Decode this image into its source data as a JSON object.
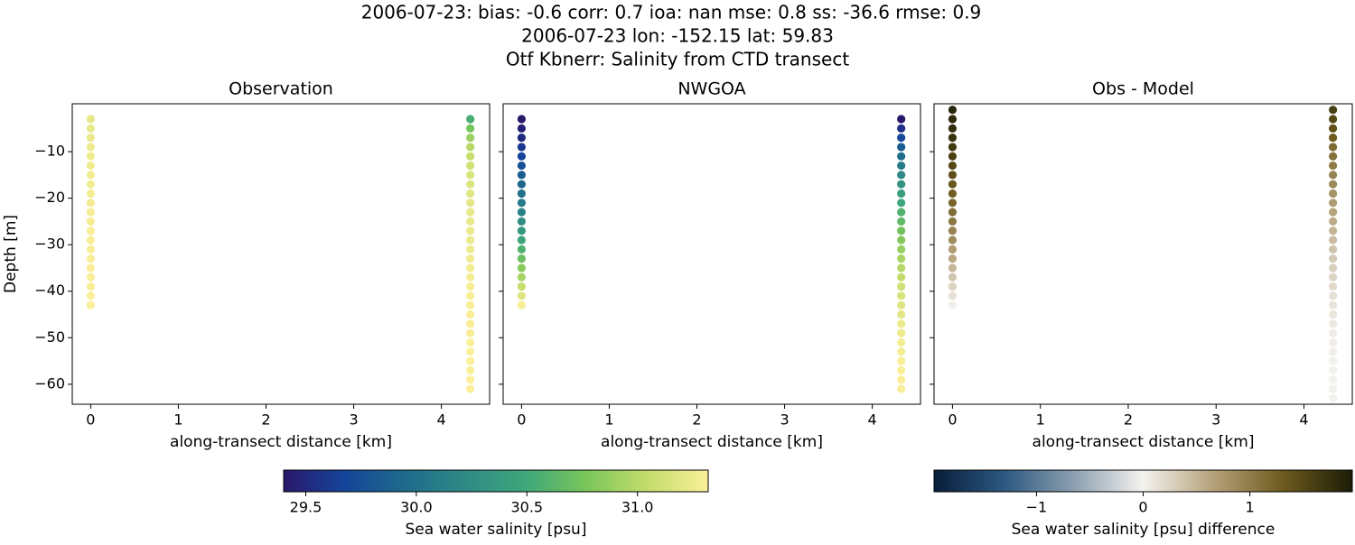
{
  "figure": {
    "title_lines": [
      "2006-07-23: bias: -0.6  corr: 0.7  ioa: nan  mse: 0.8  ss: -36.6  rmse: 0.9",
      "2006-07-23 lon: -152.15 lat: 59.83",
      "Otf Kbnerr: Salinity from CTD transect"
    ]
  },
  "colorbars": [
    {
      "label": "Sea water salinity [psu]",
      "clim": [
        29.4,
        31.32
      ],
      "ticks": [
        29.5,
        {
          "value": 30.0,
          "label": "30.0"
        },
        30.5,
        {
          "value": 31.0,
          "label": "31.0"
        }
      ],
      "colormap": [
        "#29186b",
        "#15449a",
        "#1e6b8b",
        "#2f8a86",
        "#3ea77a",
        "#7bc65a",
        "#c4dc6c",
        "#fbef99"
      ]
    },
    {
      "label": "Sea water salinity [psu] difference",
      "clim": [
        -1.96,
        1.96
      ],
      "ticks": [
        {
          "value": -1,
          "label": "−1"
        },
        0,
        1
      ],
      "colormap": [
        "#081d3a",
        "#2c5880",
        "#8b9fb0",
        "#f4f2ef",
        "#b5a27a",
        "#6e5a1e",
        "#1b1d07"
      ]
    }
  ],
  "chart_data": [
    {
      "type": "scatter",
      "title": "Observation",
      "xlabel": "along-transect distance [km]",
      "ylabel": "Depth [m]",
      "colorbar": 0,
      "xlim": [
        -0.21,
        4.55
      ],
      "ylim": [
        -64.3,
        0.3
      ],
      "xticks": [
        0,
        1,
        2,
        3,
        4
      ],
      "yticks": [
        {
          "value": -60,
          "label": "−60"
        },
        {
          "value": -50,
          "label": "−50"
        },
        {
          "value": -40,
          "label": "−40"
        },
        {
          "value": -30,
          "label": "−30"
        },
        {
          "value": -20,
          "label": "−20"
        },
        {
          "value": -10,
          "label": "−10"
        }
      ],
      "ytick_labels": true,
      "columns": [
        {
          "x": 0,
          "depth": [
            -3,
            -5,
            -7,
            -9,
            -11,
            -13,
            -15,
            -17,
            -19,
            -21,
            -23,
            -25,
            -27,
            -29,
            -31,
            -33,
            -35,
            -37,
            -39,
            -41,
            -43
          ],
          "values": [
            31.22,
            31.23,
            31.24,
            31.25,
            31.26,
            31.26,
            31.27,
            31.27,
            31.28,
            31.28,
            31.29,
            31.29,
            31.3,
            31.3,
            31.3,
            31.31,
            31.31,
            31.31,
            31.31,
            31.32,
            31.32
          ]
        },
        {
          "x": 4.33,
          "depth": [
            -3,
            -5,
            -7,
            -9,
            -11,
            -13,
            -15,
            -17,
            -19,
            -21,
            -23,
            -25,
            -27,
            -29,
            -31,
            -33,
            -35,
            -37,
            -39,
            -41,
            -43,
            -45,
            -47,
            -49,
            -51,
            -53,
            -55,
            -57,
            -59,
            -61
          ],
          "values": [
            30.55,
            30.75,
            30.9,
            31.0,
            31.06,
            31.1,
            31.14,
            31.17,
            31.19,
            31.21,
            31.22,
            31.23,
            31.24,
            31.25,
            31.26,
            31.27,
            31.28,
            31.29,
            31.29,
            31.3,
            31.3,
            31.31,
            31.31,
            31.31,
            31.32,
            31.32,
            31.32,
            31.32,
            31.32,
            31.32
          ]
        }
      ]
    },
    {
      "type": "scatter",
      "title": "NWGOA",
      "xlabel": "along-transect distance [km]",
      "colorbar": 0,
      "xlim": [
        -0.21,
        4.55
      ],
      "ylim": [
        -64.3,
        0.3
      ],
      "xticks": [
        0,
        1,
        2,
        3,
        4
      ],
      "yticks": [
        -60,
        -50,
        -40,
        -30,
        -20,
        -10
      ],
      "ytick_labels": false,
      "columns": [
        {
          "x": 0,
          "depth": [
            -3,
            -5,
            -7,
            -9,
            -11,
            -13,
            -15,
            -17,
            -19,
            -21,
            -23,
            -25,
            -27,
            -29,
            -31,
            -33,
            -35,
            -37,
            -39,
            -41,
            -43
          ],
          "values": [
            29.4,
            29.45,
            29.52,
            29.6,
            29.68,
            29.76,
            29.84,
            29.92,
            30.0,
            30.08,
            30.16,
            30.26,
            30.36,
            30.46,
            30.58,
            30.7,
            30.82,
            30.94,
            31.06,
            31.18,
            31.3
          ]
        },
        {
          "x": 4.33,
          "depth": [
            -3,
            -5,
            -7,
            -9,
            -11,
            -13,
            -15,
            -17,
            -19,
            -21,
            -23,
            -25,
            -27,
            -29,
            -31,
            -33,
            -35,
            -37,
            -39,
            -41,
            -43,
            -45,
            -47,
            -49,
            -51,
            -53,
            -55,
            -57,
            -59,
            -61
          ],
          "values": [
            29.4,
            29.55,
            29.7,
            29.84,
            29.97,
            30.09,
            30.2,
            30.3,
            30.4,
            30.49,
            30.58,
            30.66,
            30.74,
            30.81,
            30.88,
            30.94,
            31.0,
            31.05,
            31.1,
            31.14,
            31.18,
            31.21,
            31.24,
            31.26,
            31.28,
            31.29,
            31.3,
            31.3,
            31.31,
            31.31
          ]
        }
      ]
    },
    {
      "type": "scatter",
      "title": "Obs - Model",
      "xlabel": "along-transect distance [km]",
      "colorbar": 1,
      "xlim": [
        -0.21,
        4.55
      ],
      "ylim": [
        -64.3,
        0.3
      ],
      "xticks": [
        0,
        1,
        2,
        3,
        4
      ],
      "yticks": [
        -60,
        -50,
        -40,
        -30,
        -20,
        -10
      ],
      "ytick_labels": false,
      "columns": [
        {
          "x": 0,
          "depth": [
            -1,
            -3,
            -5,
            -7,
            -9,
            -11,
            -13,
            -15,
            -17,
            -19,
            -21,
            -23,
            -25,
            -27,
            -29,
            -31,
            -33,
            -35,
            -37,
            -39,
            -41,
            -43
          ],
          "values": [
            1.85,
            1.82,
            1.78,
            1.72,
            1.65,
            1.58,
            1.5,
            1.43,
            1.35,
            1.28,
            1.2,
            1.13,
            1.03,
            0.94,
            0.84,
            0.72,
            0.61,
            0.49,
            0.37,
            0.25,
            0.14,
            0.02
          ]
        },
        {
          "x": 4.33,
          "depth": [
            -1,
            -3,
            -5,
            -7,
            -9,
            -11,
            -13,
            -15,
            -17,
            -19,
            -21,
            -23,
            -25,
            -27,
            -29,
            -31,
            -33,
            -35,
            -37,
            -39,
            -41,
            -43,
            -45,
            -47,
            -49,
            -51,
            -53,
            -55,
            -57,
            -59,
            -61,
            -63
          ],
          "values": [
            1.6,
            1.5,
            1.4,
            1.3,
            1.16,
            1.09,
            1.01,
            0.94,
            0.87,
            0.79,
            0.72,
            0.64,
            0.57,
            0.5,
            0.44,
            0.38,
            0.33,
            0.28,
            0.24,
            0.19,
            0.16,
            0.12,
            0.1,
            0.07,
            0.05,
            0.04,
            0.03,
            0.02,
            0.02,
            0.01,
            0.01,
            0.01
          ]
        }
      ]
    }
  ]
}
